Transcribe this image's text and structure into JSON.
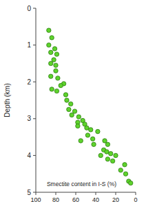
{
  "chart_data": {
    "type": "scatter",
    "x_label": "Smectite content in I-S (%)",
    "y_label": "Depth (km)",
    "x": [
      87,
      84,
      87,
      81,
      85,
      79,
      82,
      85,
      80,
      80,
      85,
      78,
      72,
      75,
      84,
      79,
      70,
      69,
      65,
      67,
      61,
      64,
      57,
      53,
      58,
      58,
      51,
      49,
      45,
      48,
      38,
      55,
      43,
      42,
      31,
      28,
      32,
      29,
      25,
      35,
      20,
      28,
      23,
      11,
      15,
      10,
      7,
      5
    ],
    "values": [
      0.6,
      0.8,
      1.0,
      1.1,
      1.2,
      1.25,
      1.4,
      1.5,
      1.55,
      1.7,
      1.85,
      1.9,
      2.05,
      2.1,
      2.2,
      2.25,
      2.35,
      2.5,
      2.6,
      2.75,
      2.8,
      2.9,
      2.95,
      3.05,
      3.1,
      3.2,
      3.15,
      3.25,
      3.3,
      3.45,
      3.35,
      3.6,
      3.55,
      3.7,
      3.6,
      3.7,
      3.85,
      3.9,
      3.95,
      4.0,
      4.0,
      4.1,
      4.15,
      4.25,
      4.4,
      4.5,
      4.7,
      4.75
    ],
    "color": "#5ed32c",
    "marker": "circle",
    "xlim": [
      100,
      0
    ],
    "xticks": [
      100,
      80,
      60,
      40,
      20,
      0
    ],
    "ylim": [
      5,
      0
    ],
    "yticks": [
      0,
      1,
      2,
      3,
      4,
      5
    ],
    "grid": false
  }
}
